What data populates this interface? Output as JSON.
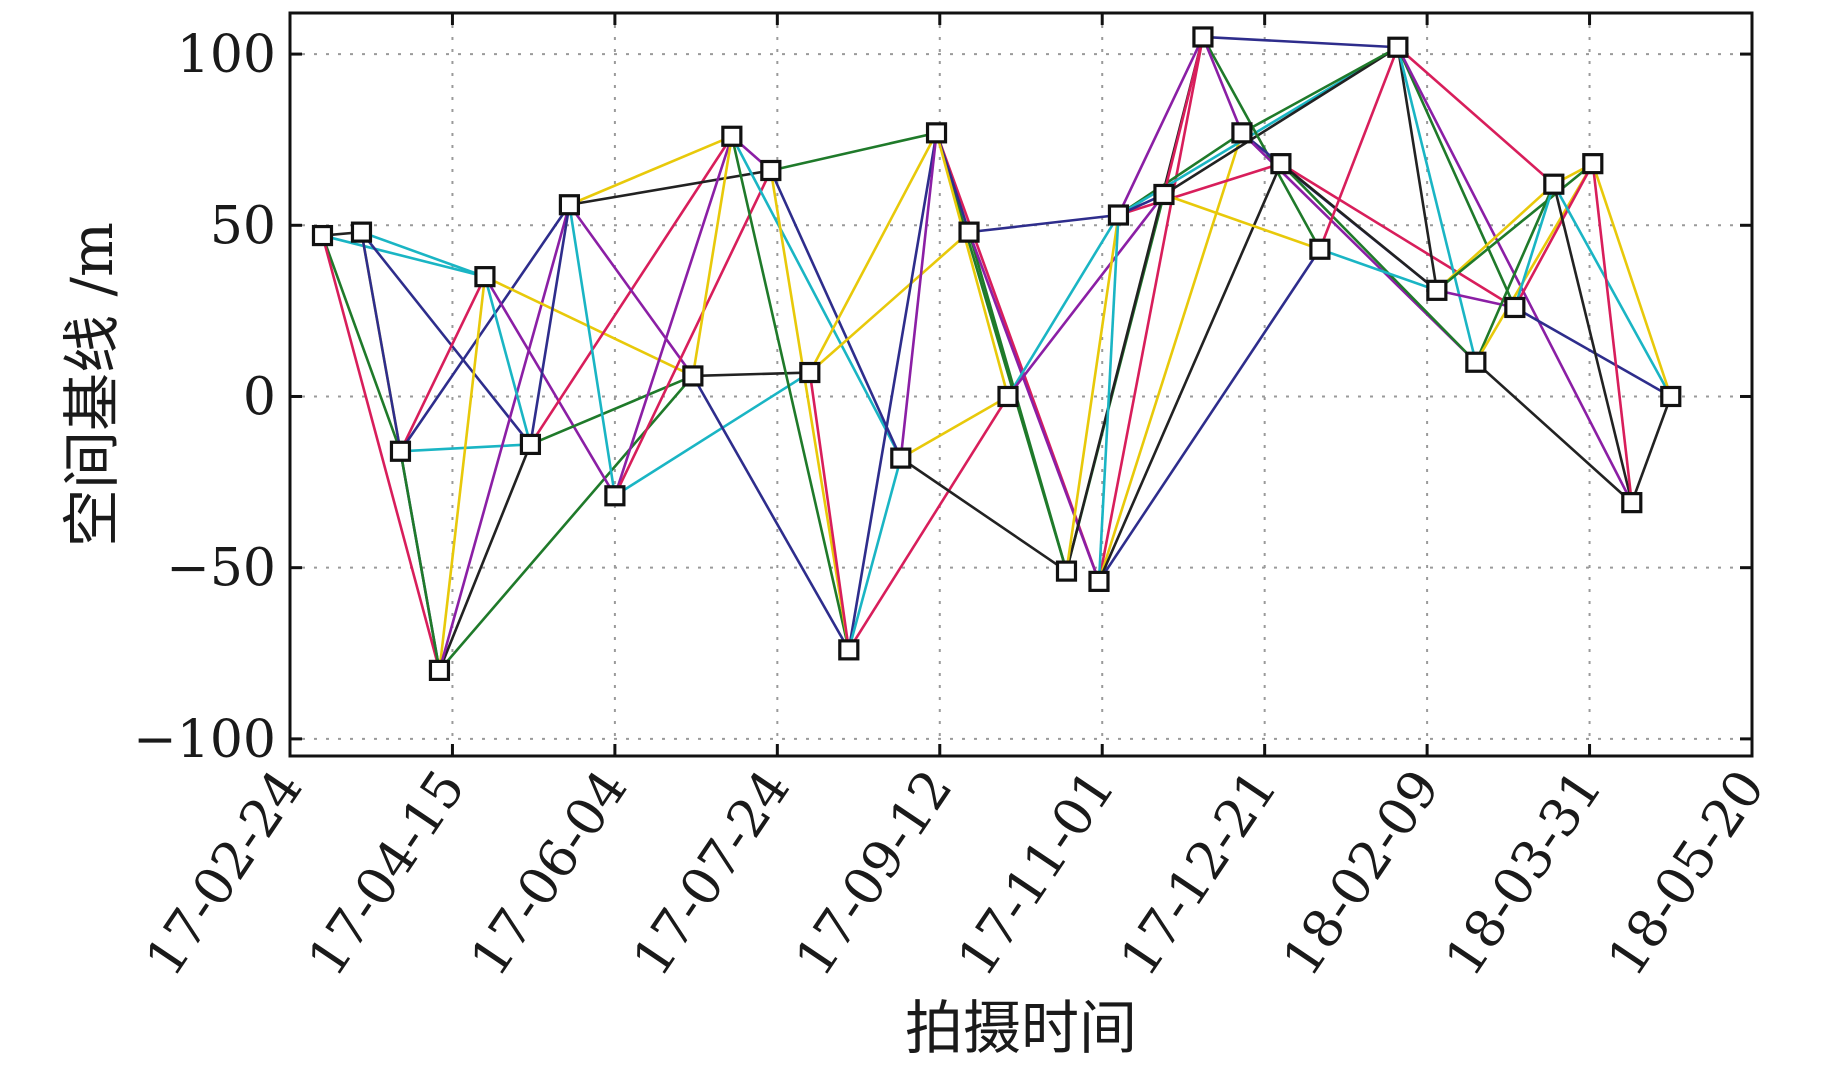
{
  "chart_data": {
    "type": "scatter",
    "title": "",
    "xlabel": "拍摄时间",
    "ylabel": "空间基线 /m",
    "x_range": [
      "17-02-24",
      "18-05-20"
    ],
    "x_tick_labels": [
      "17-02-24",
      "17-04-15",
      "17-06-04",
      "17-07-24",
      "17-09-12",
      "17-11-01",
      "17-12-21",
      "18-02-09",
      "18-03-31",
      "18-05-20"
    ],
    "ylim": [
      -105,
      112
    ],
    "y_ticks": [
      100,
      50,
      0,
      -50,
      -100
    ],
    "y_tick_labels": [
      "100",
      "50",
      "0",
      "−50",
      "−100"
    ],
    "grid": "dotted, at each tick",
    "marker": "open square",
    "nodes": [
      {
        "id": "n1",
        "date": "2017-03-06",
        "baseline": 47
      },
      {
        "id": "n2",
        "date": "2017-03-18",
        "baseline": 48
      },
      {
        "id": "n3",
        "date": "2017-03-30",
        "baseline": -16
      },
      {
        "id": "n4",
        "date": "2017-04-11",
        "baseline": -80
      },
      {
        "id": "n5",
        "date": "2017-04-25",
        "baseline": 35
      },
      {
        "id": "n6",
        "date": "2017-05-09",
        "baseline": -14
      },
      {
        "id": "n7",
        "date": "2017-05-21",
        "baseline": 56
      },
      {
        "id": "n8",
        "date": "2017-06-04",
        "baseline": -29
      },
      {
        "id": "n9",
        "date": "2017-06-28",
        "baseline": 6
      },
      {
        "id": "n10",
        "date": "2017-07-10",
        "baseline": 76
      },
      {
        "id": "n11",
        "date": "2017-07-22",
        "baseline": 66
      },
      {
        "id": "n12",
        "date": "2017-08-03",
        "baseline": 7
      },
      {
        "id": "n13",
        "date": "2017-08-15",
        "baseline": -74
      },
      {
        "id": "n14",
        "date": "2017-08-31",
        "baseline": -18
      },
      {
        "id": "n15",
        "date": "2017-09-11",
        "baseline": 77
      },
      {
        "id": "n16",
        "date": "2017-09-21",
        "baseline": 48
      },
      {
        "id": "n17",
        "date": "2017-10-03",
        "baseline": 0
      },
      {
        "id": "n18",
        "date": "2017-10-21",
        "baseline": -51
      },
      {
        "id": "n19",
        "date": "2017-10-31",
        "baseline": -54
      },
      {
        "id": "n20",
        "date": "2017-11-06",
        "baseline": 53
      },
      {
        "id": "n21",
        "date": "2017-11-20",
        "baseline": 59
      },
      {
        "id": "n22",
        "date": "2017-12-02",
        "baseline": 105
      },
      {
        "id": "n23",
        "date": "2017-12-14",
        "baseline": 77
      },
      {
        "id": "n24",
        "date": "2017-12-26",
        "baseline": 68
      },
      {
        "id": "n25",
        "date": "2018-01-07",
        "baseline": 43
      },
      {
        "id": "n26",
        "date": "2018-01-31",
        "baseline": 102
      },
      {
        "id": "n27",
        "date": "2018-02-12",
        "baseline": 31
      },
      {
        "id": "n28",
        "date": "2018-02-24",
        "baseline": 10
      },
      {
        "id": "n29",
        "date": "2018-03-08",
        "baseline": 26
      },
      {
        "id": "n30",
        "date": "2018-03-20",
        "baseline": 62
      },
      {
        "id": "n31",
        "date": "2018-04-01",
        "baseline": 68
      },
      {
        "id": "n32",
        "date": "2018-04-13",
        "baseline": -31
      },
      {
        "id": "n33",
        "date": "2018-04-25",
        "baseline": 0
      }
    ],
    "edges": [
      [
        "n1",
        "n2",
        "#222222"
      ],
      [
        "n1",
        "n3",
        "#1f7a2a"
      ],
      [
        "n1",
        "n4",
        "#d81e5b"
      ],
      [
        "n1",
        "n5",
        "#1ab5c4"
      ],
      [
        "n2",
        "n3",
        "#e8c90a"
      ],
      [
        "n2",
        "n4",
        "#2e2d8c"
      ],
      [
        "n2",
        "n5",
        "#1ab5c4"
      ],
      [
        "n2",
        "n6",
        "#2e2d8c"
      ],
      [
        "n3",
        "n5",
        "#d81e5b"
      ],
      [
        "n3",
        "n6",
        "#1ab5c4"
      ],
      [
        "n3",
        "n7",
        "#2e2d8c"
      ],
      [
        "n3",
        "n4",
        "#1f7a2a"
      ],
      [
        "n4",
        "n5",
        "#e8c90a"
      ],
      [
        "n4",
        "n6",
        "#222222"
      ],
      [
        "n4",
        "n7",
        "#8b1fa5"
      ],
      [
        "n4",
        "n9",
        "#1f7a2a"
      ],
      [
        "n5",
        "n6",
        "#1ab5c4"
      ],
      [
        "n5",
        "n8",
        "#8b1fa5"
      ],
      [
        "n5",
        "n9",
        "#e8c90a"
      ],
      [
        "n6",
        "n7",
        "#2e2d8c"
      ],
      [
        "n6",
        "n9",
        "#1f7a2a"
      ],
      [
        "n6",
        "n10",
        "#d81e5b"
      ],
      [
        "n7",
        "n8",
        "#1ab5c4"
      ],
      [
        "n7",
        "n10",
        "#e8c90a"
      ],
      [
        "n7",
        "n11",
        "#222222"
      ],
      [
        "n7",
        "n9",
        "#8b1fa5"
      ],
      [
        "n8",
        "n10",
        "#8b1fa5"
      ],
      [
        "n8",
        "n12",
        "#1ab5c4"
      ],
      [
        "n8",
        "n11",
        "#d81e5b"
      ],
      [
        "n9",
        "n12",
        "#222222"
      ],
      [
        "n9",
        "n13",
        "#2e2d8c"
      ],
      [
        "n9",
        "n10",
        "#e8c90a"
      ],
      [
        "n10",
        "n13",
        "#1f7a2a"
      ],
      [
        "n10",
        "n14",
        "#1ab5c4"
      ],
      [
        "n10",
        "n11",
        "#8b1fa5"
      ],
      [
        "n11",
        "n15",
        "#1f7a2a"
      ],
      [
        "n11",
        "n13",
        "#e8c90a"
      ],
      [
        "n11",
        "n14",
        "#2e2d8c"
      ],
      [
        "n12",
        "n15",
        "#e8c90a"
      ],
      [
        "n12",
        "n13",
        "#d81e5b"
      ],
      [
        "n12",
        "n16",
        "#e8c90a"
      ],
      [
        "n13",
        "n15",
        "#2e2d8c"
      ],
      [
        "n13",
        "n17",
        "#d81e5b"
      ],
      [
        "n13",
        "n14",
        "#1ab5c4"
      ],
      [
        "n14",
        "n15",
        "#8b1fa5"
      ],
      [
        "n14",
        "n18",
        "#222222"
      ],
      [
        "n14",
        "n17",
        "#e8c90a"
      ],
      [
        "n15",
        "n18",
        "#1f7a2a"
      ],
      [
        "n15",
        "n19",
        "#d81e5b"
      ],
      [
        "n15",
        "n16",
        "#2e2d8c"
      ],
      [
        "n15",
        "n17",
        "#e8c90a"
      ],
      [
        "n16",
        "n18",
        "#1f7a2a"
      ],
      [
        "n16",
        "n20",
        "#2e2d8c"
      ],
      [
        "n16",
        "n19",
        "#8b1fa5"
      ],
      [
        "n17",
        "n20",
        "#1ab5c4"
      ],
      [
        "n17",
        "n21",
        "#8b1fa5"
      ],
      [
        "n18",
        "n21",
        "#1f7a2a"
      ],
      [
        "n18",
        "n22",
        "#222222"
      ],
      [
        "n18",
        "n20",
        "#e8c90a"
      ],
      [
        "n19",
        "n22",
        "#d81e5b"
      ],
      [
        "n19",
        "n23",
        "#e8c90a"
      ],
      [
        "n19",
        "n24",
        "#222222"
      ],
      [
        "n19",
        "n25",
        "#2e2d8c"
      ],
      [
        "n19",
        "n20",
        "#1ab5c4"
      ],
      [
        "n20",
        "n22",
        "#8b1fa5"
      ],
      [
        "n20",
        "n23",
        "#1f7a2a"
      ],
      [
        "n20",
        "n26",
        "#1ab5c4"
      ],
      [
        "n20",
        "n24",
        "#d81e5b"
      ],
      [
        "n20",
        "n21",
        "#2e2d8c"
      ],
      [
        "n21",
        "n22",
        "#d81e5b"
      ],
      [
        "n21",
        "n26",
        "#222222"
      ],
      [
        "n21",
        "n25",
        "#e8c90a"
      ],
      [
        "n22",
        "n25",
        "#1f7a2a"
      ],
      [
        "n22",
        "n26",
        "#2e2d8c"
      ],
      [
        "n22",
        "n23",
        "#8b1fa5"
      ],
      [
        "n23",
        "n27",
        "#2e2d8c"
      ],
      [
        "n23",
        "n28",
        "#8b1fa5"
      ],
      [
        "n23",
        "n26",
        "#1f7a2a"
      ],
      [
        "n24",
        "n28",
        "#1f7a2a"
      ],
      [
        "n24",
        "n29",
        "#d81e5b"
      ],
      [
        "n24",
        "n27",
        "#222222"
      ],
      [
        "n25",
        "n26",
        "#d81e5b"
      ],
      [
        "n25",
        "n27",
        "#1ab5c4"
      ],
      [
        "n26",
        "n27",
        "#222222"
      ],
      [
        "n26",
        "n28",
        "#1ab5c4"
      ],
      [
        "n26",
        "n29",
        "#1f7a2a"
      ],
      [
        "n26",
        "n30",
        "#d81e5b"
      ],
      [
        "n26",
        "n32",
        "#8b1fa5"
      ],
      [
        "n27",
        "n29",
        "#8b1fa5"
      ],
      [
        "n27",
        "n30",
        "#e8c90a"
      ],
      [
        "n27",
        "n31",
        "#1f7a2a"
      ],
      [
        "n28",
        "n30",
        "#1f7a2a"
      ],
      [
        "n28",
        "n31",
        "#e8c90a"
      ],
      [
        "n28",
        "n32",
        "#222222"
      ],
      [
        "n29",
        "n30",
        "#1ab5c4"
      ],
      [
        "n29",
        "n33",
        "#2e2d8c"
      ],
      [
        "n29",
        "n31",
        "#d81e5b"
      ],
      [
        "n30",
        "n32",
        "#222222"
      ],
      [
        "n30",
        "n31",
        "#e8c90a"
      ],
      [
        "n30",
        "n33",
        "#1ab5c4"
      ],
      [
        "n31",
        "n32",
        "#d81e5b"
      ],
      [
        "n31",
        "n33",
        "#e8c90a"
      ],
      [
        "n32",
        "n33",
        "#222222"
      ]
    ]
  }
}
